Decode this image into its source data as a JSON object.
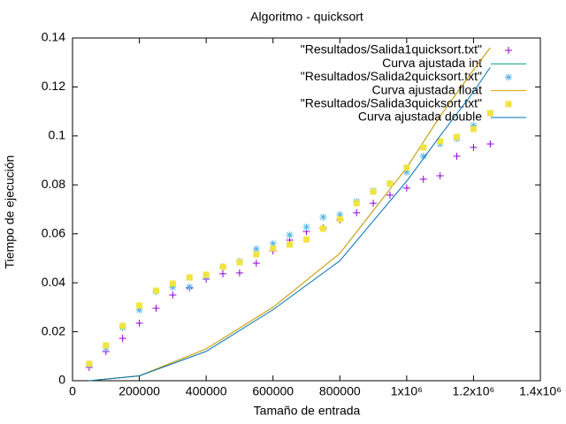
{
  "chart_data": {
    "type": "scatter",
    "title": "Algoritmo - quicksort",
    "x_label": "Tamaño de entrada",
    "y_label": "Tiempo de ejecución",
    "xlim": [
      0,
      1400000
    ],
    "ylim": [
      0,
      0.14
    ],
    "xticks": [
      0,
      200000,
      400000,
      600000,
      800000,
      {
        "value": 1000000,
        "label": "1x10⁶"
      },
      {
        "value": 1200000,
        "label": "1.2x10⁶"
      },
      {
        "value": 1400000,
        "label": "1.4x10⁶"
      }
    ],
    "yticks": [
      0,
      0.02,
      0.04,
      0.06,
      0.08,
      0.1,
      0.12,
      0.14
    ],
    "legend": "top-right",
    "series": [
      {
        "name": "\"Resultados/Salida1quicksort.txt\"",
        "color": "#9400d3",
        "style": "plus",
        "x": [
          50000,
          100000,
          150000,
          200000,
          250000,
          300000,
          350000,
          400000,
          450000,
          500000,
          550000,
          600000,
          650000,
          700000,
          750000,
          800000,
          850000,
          900000,
          950000,
          1000000,
          1050000,
          1100000,
          1150000,
          1200000,
          1250000
        ],
        "values": [
          0.0054,
          0.0119,
          0.0173,
          0.0235,
          0.0296,
          0.035,
          0.0379,
          0.0415,
          0.0437,
          0.044,
          0.048,
          0.053,
          0.0574,
          0.061,
          0.0624,
          0.0657,
          0.0686,
          0.0725,
          0.0758,
          0.0787,
          0.0823,
          0.0837,
          0.0917,
          0.0953,
          0.0967
        ]
      },
      {
        "name": "Curva ajustada int",
        "color": "#009e73",
        "style": "line",
        "x": [
          50000,
          200000,
          400000,
          600000,
          800000,
          1000000,
          1100000,
          1200000,
          1250000
        ],
        "values": [
          0,
          0.002,
          0.013,
          0.03,
          0.052,
          0.087,
          0.108,
          0.127,
          0.136
        ]
      },
      {
        "name": "\"Resultados/Salida2quicksort.txt\"",
        "color": "#56b4e9",
        "style": "star",
        "x": [
          50000,
          100000,
          150000,
          200000,
          250000,
          300000,
          350000,
          400000,
          450000,
          500000,
          550000,
          600000,
          650000,
          700000,
          750000,
          800000,
          850000,
          900000,
          950000,
          1000000,
          1050000,
          1100000,
          1150000,
          1200000
        ],
        "values": [
          0.0065,
          0.0134,
          0.0217,
          0.0289,
          0.0364,
          0.0382,
          0.0382,
          0.0426,
          0.0465,
          0.0487,
          0.0538,
          0.056,
          0.0595,
          0.0628,
          0.0668,
          0.0678,
          0.0732,
          0.0776,
          0.0805,
          0.0852,
          0.0917,
          0.0967,
          0.0989,
          0.1043
        ]
      },
      {
        "name": "Curva ajustada float",
        "color": "#e69f00",
        "style": "line",
        "x": [
          50000,
          200000,
          400000,
          600000,
          800000,
          1000000,
          1100000,
          1200000,
          1250000
        ],
        "values": [
          0,
          0.002,
          0.013,
          0.03,
          0.052,
          0.087,
          0.108,
          0.127,
          0.136
        ]
      },
      {
        "name": "\"Resultados/Salida3quicksort.txt\"",
        "color": "#f0e442",
        "style": "square",
        "x": [
          50000,
          100000,
          150000,
          200000,
          250000,
          300000,
          350000,
          400000,
          450000,
          500000,
          550000,
          600000,
          650000,
          700000,
          750000,
          800000,
          850000,
          900000,
          950000,
          1000000,
          1050000,
          1100000,
          1150000,
          1200000,
          1250000
        ],
        "values": [
          0.0069,
          0.0144,
          0.0224,
          0.0307,
          0.0368,
          0.0397,
          0.0422,
          0.0433,
          0.0465,
          0.0484,
          0.0516,
          0.0541,
          0.0556,
          0.0577,
          0.0621,
          0.066,
          0.0725,
          0.0772,
          0.0805,
          0.087,
          0.0953,
          0.0978,
          0.0996,
          0.1028,
          0.1093
        ]
      },
      {
        "name": "Curva ajustada double",
        "color": "#0072b2",
        "style": "line",
        "x": [
          50000,
          200000,
          400000,
          600000,
          800000,
          1000000,
          1100000,
          1200000,
          1250000
        ],
        "values": [
          0,
          0.002,
          0.012,
          0.029,
          0.049,
          0.0815,
          0.1,
          0.118,
          0.128
        ]
      }
    ]
  }
}
